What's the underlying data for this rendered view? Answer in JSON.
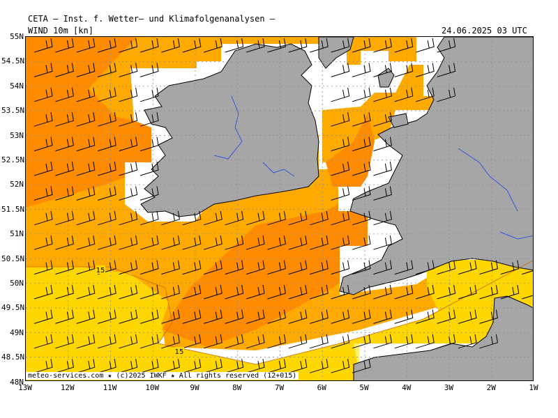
{
  "header": {
    "title": "CETA — Inst. f. Wetter— und Klimafolgenanalysen —",
    "field": "WIND 10m [kn]",
    "valid_time": "24.06.2025 03 UTC"
  },
  "axes": {
    "lat_labels": [
      "55N",
      "54.5N",
      "54N",
      "53.5N",
      "53N",
      "52.5N",
      "52N",
      "51.5N",
      "51N",
      "50.5N",
      "50N",
      "49.5N",
      "49N",
      "48.5N",
      "48N"
    ],
    "lon_labels": [
      "13W",
      "12W",
      "11W",
      "10W",
      "9W",
      "8W",
      "7W",
      "6W",
      "5W",
      "4W",
      "3W",
      "2W",
      "1W"
    ]
  },
  "contour_labels": {
    "left": "15",
    "bottom": "15"
  },
  "footer": "meteo-services.com ★ (c)2025 IWKF ★ All rights reserved (12+015)",
  "colors": {
    "land": "#a6a6a6",
    "sea_calm": "#ffffff",
    "band_10_15": "#ffd700",
    "band_15_20": "#ffaa00",
    "band_20_25": "#ff8c00",
    "band_light": "#fff06e",
    "rivers": "#3355dd",
    "grid": "#8c8c8c"
  },
  "map": {
    "extent_lon": [
      -13,
      -1
    ],
    "extent_lat": [
      48,
      55
    ],
    "legend_bands_kn": [
      "<10",
      "10-15",
      "15-20",
      "20-25"
    ],
    "wind_direction": "westerly/southwesterly"
  }
}
